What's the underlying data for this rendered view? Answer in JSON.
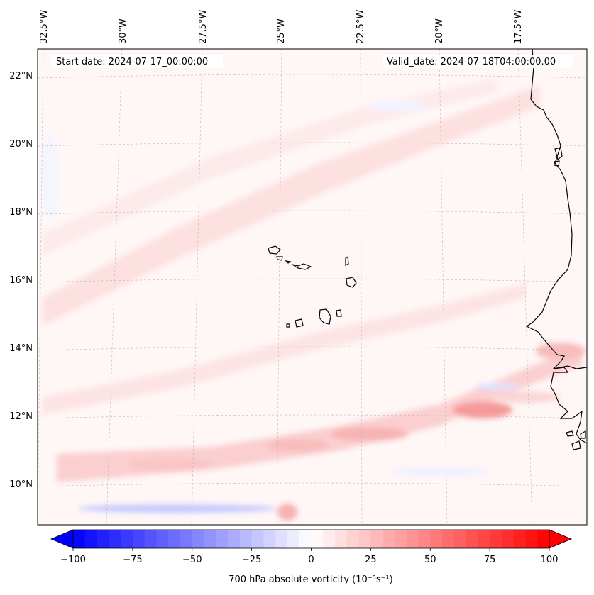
{
  "header": {
    "start_date": "Start date: 2024-07-17_00:00:00",
    "valid_date": "Valid_date: 2024-07-18T04:00:00.00"
  },
  "map": {
    "longitude_labels": [
      "32.5°W",
      "30°W",
      "27.5°W",
      "25°W",
      "22.5°W",
      "20°W",
      "17.5°W"
    ],
    "latitude_labels": [
      "22°N",
      "20°N",
      "18°N",
      "16°N",
      "14°N",
      "12°N",
      "10°N"
    ],
    "gridlines": true,
    "field_colors": {
      "positive": "#ff0000",
      "negative": "#0000ff",
      "neutral": "#ffffff"
    }
  },
  "colorbar": {
    "label": "700 hPa absolute vorticity (10⁻⁵s⁻¹)",
    "ticks": [
      "−100",
      "−75",
      "−50",
      "−25",
      "0",
      "25",
      "50",
      "75",
      "100"
    ],
    "range": [
      -100,
      100
    ]
  }
}
